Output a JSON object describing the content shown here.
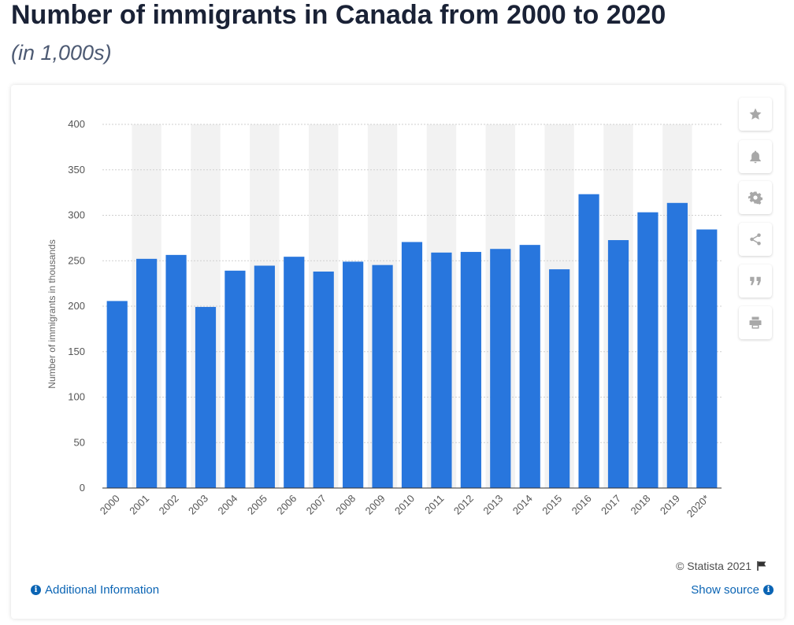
{
  "header": {
    "title": "Number of immigrants in Canada from 2000 to 2020",
    "subtitle": "(in 1,000s)"
  },
  "sidebar": {
    "buttons": [
      {
        "name": "favorite",
        "icon": "star-icon"
      },
      {
        "name": "notification",
        "icon": "bell-icon"
      },
      {
        "name": "settings",
        "icon": "gear-icon"
      },
      {
        "name": "share",
        "icon": "share-icon"
      },
      {
        "name": "cite",
        "icon": "quote-icon"
      },
      {
        "name": "print",
        "icon": "print-icon"
      }
    ]
  },
  "footer": {
    "copyright": "© Statista 2021",
    "additional_info": "Additional Information",
    "show_source": "Show source"
  },
  "colors": {
    "bar": "#2876dd",
    "band": "#f2f2f2",
    "grid": "#cfcfcf",
    "link": "#0a64b4"
  },
  "chart_data": {
    "type": "bar",
    "ylabel": "Number of immigrants in thousands",
    "ylim": [
      0,
      400
    ],
    "yticks": [
      0,
      50,
      100,
      150,
      200,
      250,
      300,
      350,
      400
    ],
    "grid": true,
    "categories": [
      "2000",
      "2001",
      "2002",
      "2003",
      "2004",
      "2005",
      "2006",
      "2007",
      "2008",
      "2009",
      "2010",
      "2011",
      "2012",
      "2013",
      "2014",
      "2015",
      "2016",
      "2017",
      "2018",
      "2019",
      "2020*"
    ],
    "values": [
      205.7,
      252.1,
      256.4,
      199.2,
      239.1,
      244.6,
      254.4,
      238.1,
      249.0,
      245.3,
      270.6,
      259.0,
      259.7,
      263.0,
      267.4,
      240.6,
      323.2,
      272.7,
      303.3,
      313.6,
      284.4
    ]
  }
}
